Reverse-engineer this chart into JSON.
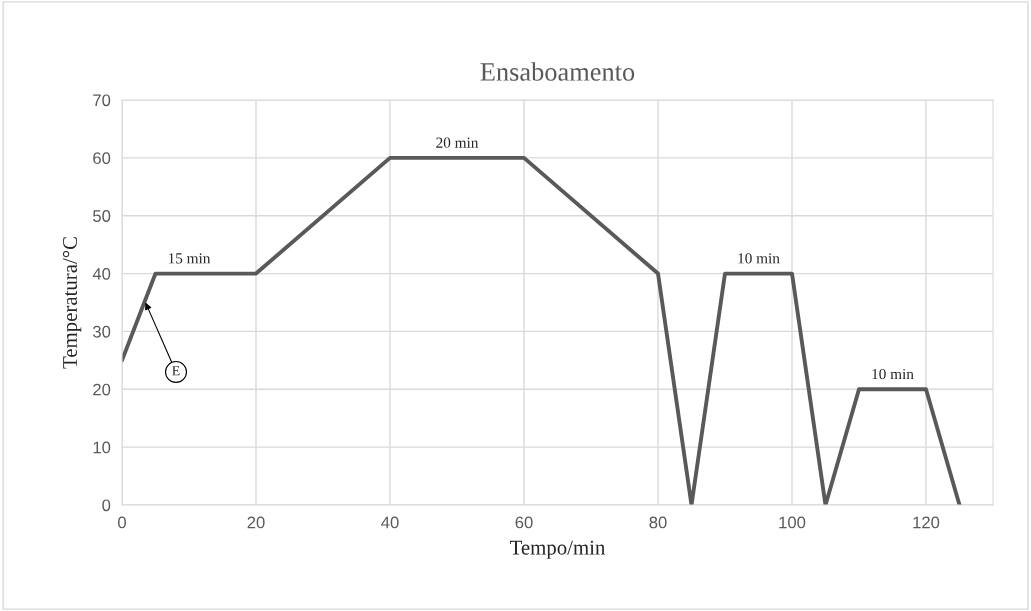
{
  "chart_data": {
    "type": "line",
    "title": "Ensaboamento",
    "xlabel": "Tempo/min",
    "ylabel": "Temperatura/°C",
    "x": [
      0,
      5,
      20,
      40,
      60,
      80,
      85,
      90,
      100,
      105,
      110,
      120,
      125
    ],
    "series": [
      {
        "color": "#595959",
        "values": [
          25,
          40,
          40,
          60,
          60,
          40,
          0,
          40,
          40,
          0,
          20,
          20,
          0
        ]
      }
    ],
    "xlim": [
      0,
      130
    ],
    "xticks": [
      0,
      20,
      40,
      60,
      80,
      100,
      120
    ],
    "ylim": [
      0,
      70
    ],
    "yticks": [
      0,
      10,
      20,
      30,
      40,
      50,
      60,
      70
    ],
    "grid": true,
    "legend": false,
    "marker": "none",
    "line_style": "solid",
    "annotations": [
      {
        "text": "15 min",
        "x": 10,
        "y": 40
      },
      {
        "text": "20 min",
        "x": 50,
        "y": 60
      },
      {
        "text": "10 min",
        "x": 95,
        "y": 40
      },
      {
        "text": "10 min",
        "x": 115,
        "y": 20
      },
      {
        "text": "E",
        "x": 3.5,
        "y": 35
      }
    ]
  }
}
